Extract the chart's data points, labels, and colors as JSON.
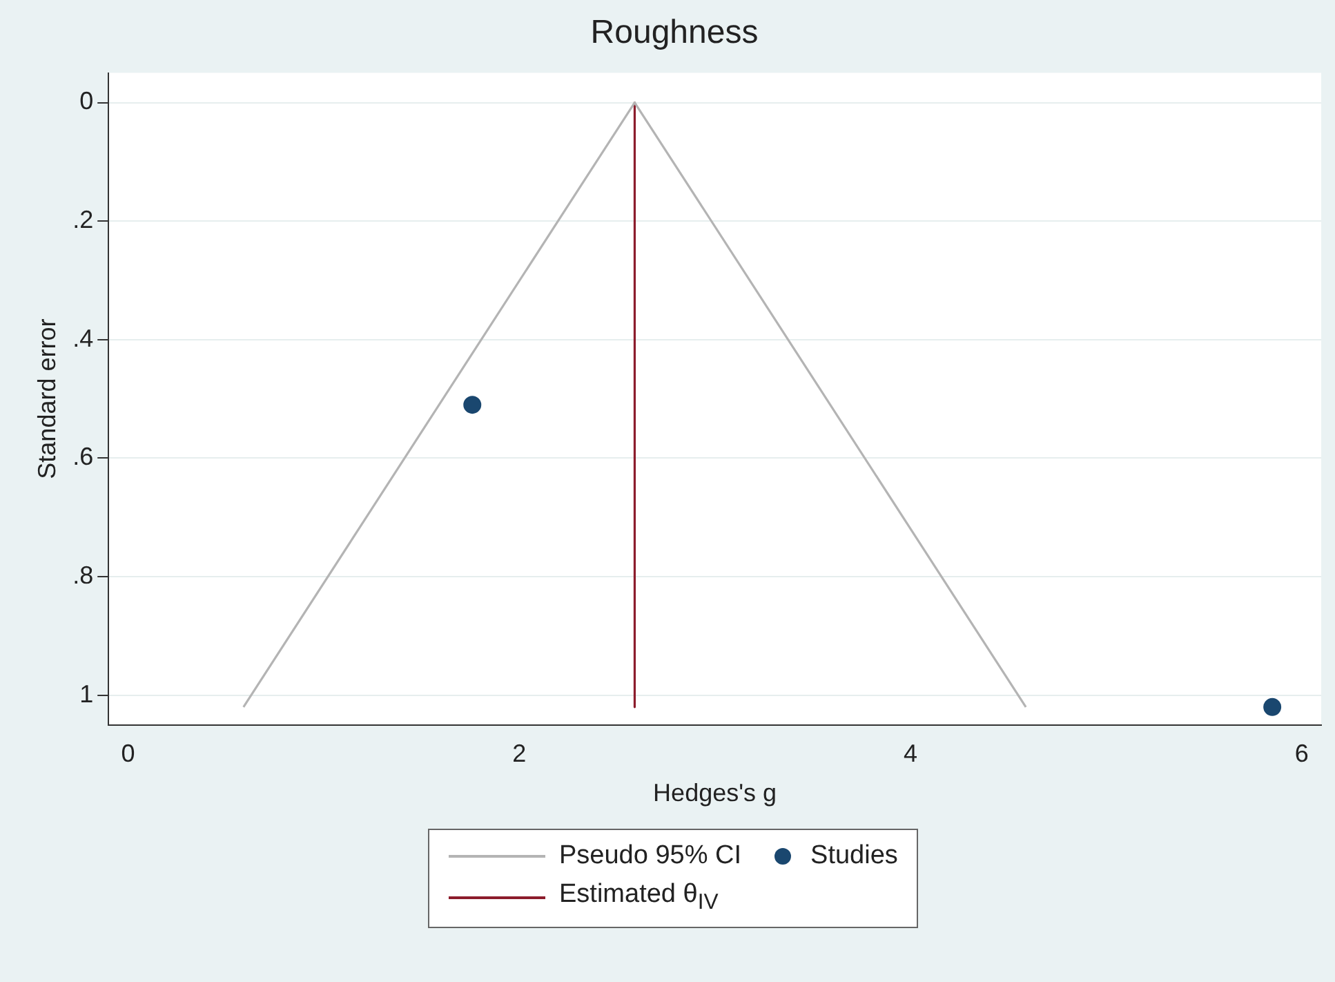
{
  "chart_data": {
    "type": "scatter",
    "title": "Roughness",
    "xlabel": "Hedges's g",
    "ylabel": "Standard error",
    "xlim": [
      -0.1,
      6.1
    ],
    "xticks": [
      0,
      2,
      4,
      6
    ],
    "ylim": [
      1.05,
      -0.05
    ],
    "yticks": [
      0,
      {
        "value": 0.2,
        "label": ".2"
      },
      {
        "value": 0.4,
        "label": ".4"
      },
      {
        "value": 0.6,
        "label": ".6"
      },
      {
        "value": 0.8,
        "label": ".8"
      },
      1
    ],
    "grid": "y",
    "legend": "bottom",
    "line_style": "solid",
    "series": [
      {
        "name": "Pseudo 95% CI",
        "type": "line",
        "color": "#b4b4b4",
        "x": [
          0.59,
          2.59,
          4.59
        ],
        "values": [
          1.02,
          0,
          1.02
        ]
      },
      {
        "name": "Studies",
        "marker": "circle",
        "color": "#1a476f",
        "x": [
          1.76,
          5.85
        ],
        "values": [
          0.51,
          1.02
        ]
      },
      {
        "name": "Estimated θ$_{IV}$",
        "type": "line",
        "color": "#8c1c2c",
        "x": [
          2.59,
          2.59
        ],
        "values": [
          0,
          1.02
        ]
      }
    ]
  }
}
